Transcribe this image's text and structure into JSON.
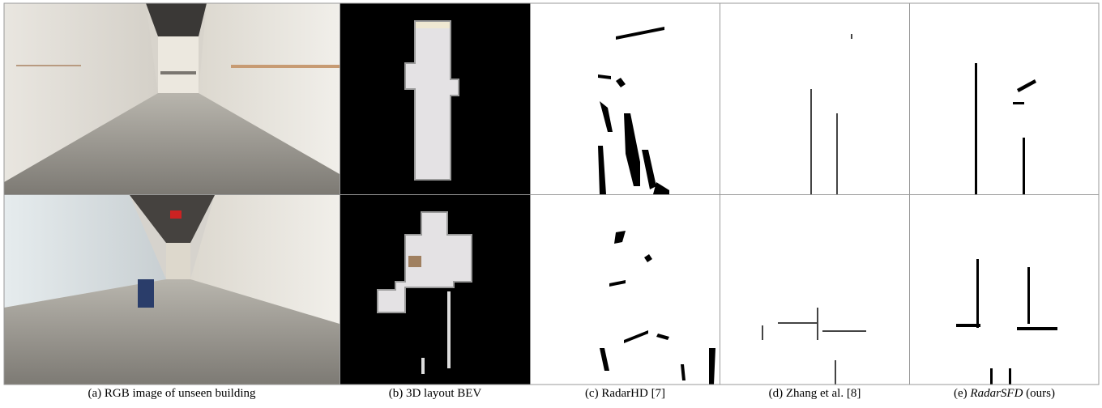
{
  "figure": {
    "captions": [
      {
        "text": "(a) RGB image of unseen building"
      },
      {
        "text": "(b) 3D layout BEV"
      },
      {
        "text": "(c) RadarHD [7]"
      },
      {
        "text": "(d) Zhang et al. [8]"
      },
      {
        "prefix": "(e)",
        "emphasis": "RadarSFD",
        "suffix": "(ours)"
      }
    ]
  }
}
